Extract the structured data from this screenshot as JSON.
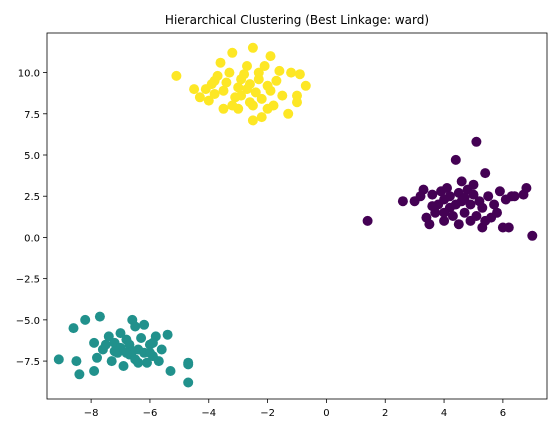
{
  "chart_data": {
    "type": "scatter",
    "title": "Hierarchical Clustering (Best Linkage: ward)",
    "xlabel": "",
    "ylabel": "",
    "xlim": [
      -9.5,
      7.5
    ],
    "ylim": [
      -9.8,
      12.4
    ],
    "xticks": [
      -8,
      -6,
      -4,
      -2,
      0,
      2,
      4,
      6
    ],
    "xtick_labels": [
      "−8",
      "−6",
      "−4",
      "−2",
      "0",
      "2",
      "4",
      "6"
    ],
    "yticks": [
      -7.5,
      -5.0,
      -2.5,
      0.0,
      2.5,
      5.0,
      7.5,
      10.0
    ],
    "ytick_labels": [
      "−7.5",
      "−5.0",
      "−2.5",
      "0.0",
      "2.5",
      "5.0",
      "7.5",
      "10.0"
    ],
    "grid": false,
    "legend": "none",
    "series": [
      {
        "color": "#440154",
        "points": [
          [
            1.4,
            1.0
          ],
          [
            2.6,
            2.2
          ],
          [
            3.0,
            2.2
          ],
          [
            3.3,
            2.9
          ],
          [
            3.4,
            1.2
          ],
          [
            3.5,
            0.8
          ],
          [
            3.6,
            2.6
          ],
          [
            3.7,
            1.5
          ],
          [
            3.8,
            2.0
          ],
          [
            3.9,
            2.8
          ],
          [
            4.0,
            1.0
          ],
          [
            4.0,
            2.3
          ],
          [
            4.1,
            3.0
          ],
          [
            4.2,
            1.8
          ],
          [
            4.2,
            2.5
          ],
          [
            4.3,
            1.3
          ],
          [
            4.4,
            2.0
          ],
          [
            4.4,
            4.7
          ],
          [
            4.5,
            2.7
          ],
          [
            4.5,
            0.8
          ],
          [
            4.6,
            2.2
          ],
          [
            4.6,
            3.4
          ],
          [
            4.7,
            1.5
          ],
          [
            4.8,
            2.9
          ],
          [
            4.9,
            1.0
          ],
          [
            4.9,
            2.0
          ],
          [
            5.0,
            2.6
          ],
          [
            5.0,
            3.2
          ],
          [
            5.1,
            5.8
          ],
          [
            5.1,
            1.3
          ],
          [
            5.2,
            2.2
          ],
          [
            5.3,
            0.6
          ],
          [
            5.3,
            1.8
          ],
          [
            5.4,
            3.9
          ],
          [
            5.5,
            2.5
          ],
          [
            5.6,
            1.2
          ],
          [
            5.7,
            2.0
          ],
          [
            5.8,
            1.5
          ],
          [
            5.9,
            2.8
          ],
          [
            6.0,
            0.6
          ],
          [
            6.1,
            2.3
          ],
          [
            6.2,
            0.6
          ],
          [
            6.3,
            2.5
          ],
          [
            6.4,
            2.5
          ],
          [
            6.7,
            2.6
          ],
          [
            6.8,
            3.0
          ],
          [
            7.0,
            0.1
          ],
          [
            3.2,
            2.5
          ],
          [
            4.0,
            1.5
          ],
          [
            4.7,
            2.4
          ],
          [
            5.4,
            1.0
          ],
          [
            3.6,
            1.9
          ]
        ]
      },
      {
        "color": "#21918c",
        "points": [
          [
            -9.1,
            -7.4
          ],
          [
            -8.6,
            -5.5
          ],
          [
            -8.5,
            -7.5
          ],
          [
            -8.4,
            -8.3
          ],
          [
            -8.2,
            -5.0
          ],
          [
            -7.9,
            -8.1
          ],
          [
            -7.9,
            -6.4
          ],
          [
            -7.8,
            -7.3
          ],
          [
            -7.7,
            -4.8
          ],
          [
            -7.6,
            -6.8
          ],
          [
            -7.5,
            -6.5
          ],
          [
            -7.4,
            -6.0
          ],
          [
            -7.3,
            -7.5
          ],
          [
            -7.2,
            -6.4
          ],
          [
            -7.1,
            -7.0
          ],
          [
            -7.0,
            -5.8
          ],
          [
            -7.0,
            -6.7
          ],
          [
            -6.9,
            -7.8
          ],
          [
            -6.8,
            -6.2
          ],
          [
            -6.7,
            -7.1
          ],
          [
            -6.7,
            -6.5
          ],
          [
            -6.6,
            -5.0
          ],
          [
            -6.5,
            -5.4
          ],
          [
            -6.5,
            -7.4
          ],
          [
            -6.4,
            -6.8
          ],
          [
            -6.3,
            -6.1
          ],
          [
            -6.2,
            -7.0
          ],
          [
            -6.2,
            -5.3
          ],
          [
            -6.1,
            -7.6
          ],
          [
            -6.0,
            -6.5
          ],
          [
            -5.9,
            -7.2
          ],
          [
            -5.8,
            -6.0
          ],
          [
            -5.7,
            -7.5
          ],
          [
            -5.6,
            -6.8
          ],
          [
            -5.4,
            -5.9
          ],
          [
            -5.3,
            -8.1
          ],
          [
            -4.7,
            -7.6
          ],
          [
            -4.7,
            -7.7
          ],
          [
            -4.7,
            -8.8
          ],
          [
            -6.6,
            -6.9
          ],
          [
            -7.2,
            -6.9
          ],
          [
            -6.0,
            -7.0
          ],
          [
            -6.4,
            -7.6
          ],
          [
            -6.8,
            -7.0
          ],
          [
            -5.9,
            -6.4
          ]
        ]
      },
      {
        "color": "#fde725",
        "points": [
          [
            -5.1,
            9.8
          ],
          [
            -4.5,
            9.0
          ],
          [
            -4.3,
            8.5
          ],
          [
            -4.1,
            9.0
          ],
          [
            -4.0,
            8.3
          ],
          [
            -3.9,
            9.3
          ],
          [
            -3.8,
            8.7
          ],
          [
            -3.7,
            9.8
          ],
          [
            -3.6,
            10.6
          ],
          [
            -3.5,
            7.8
          ],
          [
            -3.5,
            8.9
          ],
          [
            -3.4,
            9.4
          ],
          [
            -3.3,
            10.0
          ],
          [
            -3.2,
            11.2
          ],
          [
            -3.1,
            8.5
          ],
          [
            -3.0,
            9.1
          ],
          [
            -3.0,
            7.8
          ],
          [
            -2.9,
            8.6
          ],
          [
            -2.8,
            9.9
          ],
          [
            -2.7,
            10.4
          ],
          [
            -2.6,
            8.2
          ],
          [
            -2.6,
            9.3
          ],
          [
            -2.5,
            11.5
          ],
          [
            -2.5,
            7.1
          ],
          [
            -2.4,
            8.8
          ],
          [
            -2.3,
            9.6
          ],
          [
            -2.3,
            10.0
          ],
          [
            -2.2,
            7.3
          ],
          [
            -2.2,
            8.4
          ],
          [
            -2.1,
            10.4
          ],
          [
            -2.0,
            9.2
          ],
          [
            -1.9,
            8.9
          ],
          [
            -1.9,
            11.0
          ],
          [
            -1.8,
            8.0
          ],
          [
            -1.7,
            9.5
          ],
          [
            -1.6,
            10.1
          ],
          [
            -1.5,
            8.6
          ],
          [
            -1.3,
            7.5
          ],
          [
            -1.2,
            10.0
          ],
          [
            -1.0,
            8.6
          ],
          [
            -1.0,
            8.2
          ],
          [
            -0.9,
            9.9
          ],
          [
            -0.7,
            9.2
          ],
          [
            -2.9,
            9.6
          ],
          [
            -2.5,
            8.0
          ],
          [
            -3.2,
            8.0
          ],
          [
            -2.0,
            7.8
          ],
          [
            -2.7,
            9.0
          ],
          [
            -3.8,
            9.5
          ]
        ]
      }
    ]
  }
}
